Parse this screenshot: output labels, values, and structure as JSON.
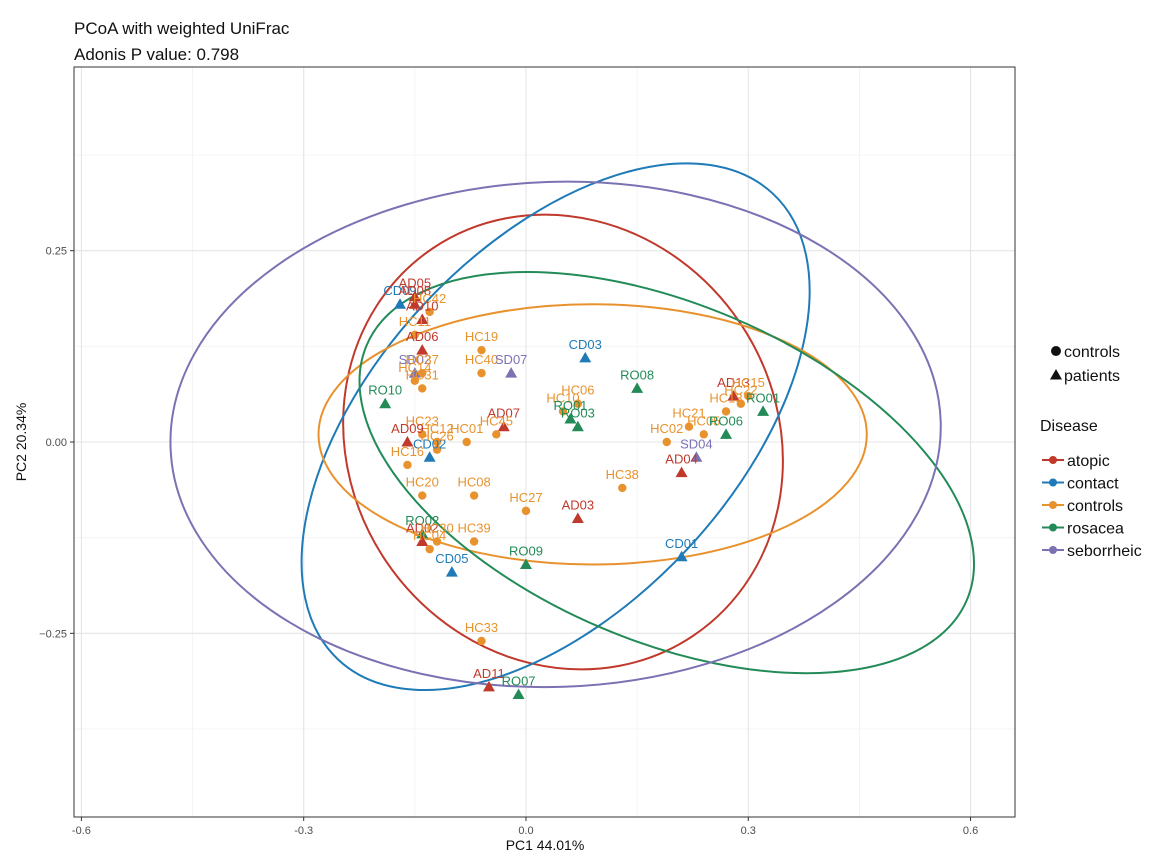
{
  "chart_data": {
    "type": "scatter",
    "title": "PCoA with weighted UniFrac",
    "subtitle": "Adonis P value: 0.798",
    "xlabel": "PC1 44.01%",
    "ylabel": "PC2 20.34%",
    "xlim": [
      -0.61,
      0.66
    ],
    "ylim": [
      -0.49,
      0.49
    ],
    "x_ticks": [
      -0.6,
      -0.3,
      0.0,
      0.3,
      0.6
    ],
    "x_tick_labels": [
      "-0.6",
      "-0.3",
      "0.0",
      "0.3",
      "0.6"
    ],
    "y_ticks": [
      -0.25,
      0.0,
      0.25
    ],
    "y_tick_labels": [
      "−0.25",
      "0.00",
      "0.25"
    ],
    "grid": true,
    "legend_position": "right",
    "shape_legend": {
      "items": [
        {
          "label": "controls",
          "shape": "circle"
        },
        {
          "label": "patients",
          "shape": "triangle"
        }
      ]
    },
    "color_legend": {
      "title": "Disease",
      "items": [
        {
          "label": "atopic",
          "color": "#c0392b"
        },
        {
          "label": "contact",
          "color": "#1f7ab8"
        },
        {
          "label": "controls",
          "color": "#e8922e"
        },
        {
          "label": "rosacea",
          "color": "#238b57"
        },
        {
          "label": "seborrheic",
          "color": "#7b72b3"
        }
      ]
    },
    "ellipses": [
      {
        "group": "atopic",
        "cx": 0.05,
        "cy": 0.0,
        "rx": 0.288,
        "ry": 0.305,
        "angle": -34
      },
      {
        "group": "contact",
        "cx": 0.04,
        "cy": 0.02,
        "rx": 0.43,
        "ry": 0.235,
        "angle": -47
      },
      {
        "group": "controls",
        "cx": 0.09,
        "cy": 0.01,
        "rx": 0.37,
        "ry": 0.17,
        "angle": 0
      },
      {
        "group": "rosacea",
        "cx": 0.19,
        "cy": -0.04,
        "rx": 0.44,
        "ry": 0.22,
        "angle": 23
      },
      {
        "group": "seborrheic",
        "cx": 0.04,
        "cy": 0.01,
        "rx": 0.52,
        "ry": 0.33,
        "angle": -2
      }
    ],
    "points": [
      {
        "label": "CD09",
        "x": -0.17,
        "y": 0.18,
        "group": "contact",
        "shape": "triangle"
      },
      {
        "label": "AD08",
        "x": -0.15,
        "y": 0.18,
        "group": "atopic",
        "shape": "triangle"
      },
      {
        "label": "AD05",
        "x": -0.15,
        "y": 0.19,
        "group": "atopic",
        "shape": "triangle"
      },
      {
        "label": "HC42",
        "x": -0.13,
        "y": 0.17,
        "group": "controls",
        "shape": "circle"
      },
      {
        "label": "AD10",
        "x": -0.14,
        "y": 0.16,
        "group": "atopic",
        "shape": "triangle"
      },
      {
        "label": "HC11",
        "x": -0.15,
        "y": 0.14,
        "group": "controls",
        "shape": "circle"
      },
      {
        "label": "AD06",
        "x": -0.14,
        "y": 0.12,
        "group": "atopic",
        "shape": "triangle"
      },
      {
        "label": "HC19",
        "x": -0.06,
        "y": 0.12,
        "group": "controls",
        "shape": "circle"
      },
      {
        "label": "CD03",
        "x": 0.08,
        "y": 0.11,
        "group": "contact",
        "shape": "triangle"
      },
      {
        "label": "HC40",
        "x": -0.06,
        "y": 0.09,
        "group": "controls",
        "shape": "circle"
      },
      {
        "label": "SD07",
        "x": -0.02,
        "y": 0.09,
        "group": "seborrheic",
        "shape": "triangle"
      },
      {
        "label": "SD02",
        "x": -0.15,
        "y": 0.09,
        "group": "seborrheic",
        "shape": "triangle"
      },
      {
        "label": "HC37",
        "x": -0.14,
        "y": 0.09,
        "group": "controls",
        "shape": "circle"
      },
      {
        "label": "HC14",
        "x": -0.15,
        "y": 0.08,
        "group": "controls",
        "shape": "circle"
      },
      {
        "label": "HC31",
        "x": -0.14,
        "y": 0.07,
        "group": "controls",
        "shape": "circle"
      },
      {
        "label": "RO10",
        "x": -0.19,
        "y": 0.05,
        "group": "rosacea",
        "shape": "triangle"
      },
      {
        "label": "RO08",
        "x": 0.15,
        "y": 0.07,
        "group": "rosacea",
        "shape": "triangle"
      },
      {
        "label": "HC06",
        "x": 0.07,
        "y": 0.05,
        "group": "controls",
        "shape": "circle"
      },
      {
        "label": "HC10",
        "x": 0.05,
        "y": 0.04,
        "group": "controls",
        "shape": "circle"
      },
      {
        "label": "RO01",
        "x": 0.06,
        "y": 0.03,
        "group": "rosacea",
        "shape": "triangle"
      },
      {
        "label": "RO03",
        "x": 0.07,
        "y": 0.02,
        "group": "rosacea",
        "shape": "triangle"
      },
      {
        "label": "AD07",
        "x": -0.03,
        "y": 0.02,
        "group": "atopic",
        "shape": "triangle"
      },
      {
        "label": "HC45",
        "x": -0.04,
        "y": 0.01,
        "group": "controls",
        "shape": "circle"
      },
      {
        "label": "HC01",
        "x": -0.08,
        "y": 0.0,
        "group": "controls",
        "shape": "circle"
      },
      {
        "label": "HC23",
        "x": -0.14,
        "y": 0.01,
        "group": "controls",
        "shape": "circle"
      },
      {
        "label": "HC12",
        "x": -0.12,
        "y": 0.0,
        "group": "controls",
        "shape": "circle"
      },
      {
        "label": "AD09",
        "x": -0.16,
        "y": 0.0,
        "group": "atopic",
        "shape": "triangle"
      },
      {
        "label": "CD02",
        "x": -0.13,
        "y": -0.02,
        "group": "contact",
        "shape": "triangle"
      },
      {
        "label": "HC26",
        "x": -0.12,
        "y": -0.01,
        "group": "controls",
        "shape": "circle"
      },
      {
        "label": "HC16",
        "x": -0.16,
        "y": -0.03,
        "group": "controls",
        "shape": "circle"
      },
      {
        "label": "HC20",
        "x": -0.14,
        "y": -0.07,
        "group": "controls",
        "shape": "circle"
      },
      {
        "label": "HC08",
        "x": -0.07,
        "y": -0.07,
        "group": "controls",
        "shape": "circle"
      },
      {
        "label": "HC27",
        "x": 0.0,
        "y": -0.09,
        "group": "controls",
        "shape": "circle"
      },
      {
        "label": "AD03",
        "x": 0.07,
        "y": -0.1,
        "group": "atopic",
        "shape": "triangle"
      },
      {
        "label": "HC38",
        "x": 0.13,
        "y": -0.06,
        "group": "controls",
        "shape": "circle"
      },
      {
        "label": "AD04",
        "x": 0.21,
        "y": -0.04,
        "group": "atopic",
        "shape": "triangle"
      },
      {
        "label": "HC02",
        "x": 0.19,
        "y": 0.0,
        "group": "controls",
        "shape": "circle"
      },
      {
        "label": "HC21",
        "x": 0.22,
        "y": 0.02,
        "group": "controls",
        "shape": "circle"
      },
      {
        "label": "SD04",
        "x": 0.23,
        "y": -0.02,
        "group": "seborrheic",
        "shape": "triangle"
      },
      {
        "label": "HC05",
        "x": 0.24,
        "y": 0.01,
        "group": "controls",
        "shape": "circle"
      },
      {
        "label": "RO06",
        "x": 0.27,
        "y": 0.01,
        "group": "rosacea",
        "shape": "triangle"
      },
      {
        "label": "HC13",
        "x": 0.27,
        "y": 0.04,
        "group": "controls",
        "shape": "circle"
      },
      {
        "label": "AD13",
        "x": 0.28,
        "y": 0.06,
        "group": "atopic",
        "shape": "triangle"
      },
      {
        "label": "HC22",
        "x": 0.29,
        "y": 0.05,
        "group": "controls",
        "shape": "circle"
      },
      {
        "label": "HC15",
        "x": 0.3,
        "y": 0.06,
        "group": "controls",
        "shape": "circle"
      },
      {
        "label": "RO01",
        "x": 0.32,
        "y": 0.04,
        "group": "rosacea",
        "shape": "triangle"
      },
      {
        "label": "RO02",
        "x": -0.14,
        "y": -0.12,
        "group": "rosacea",
        "shape": "triangle"
      },
      {
        "label": "AD02",
        "x": -0.14,
        "y": -0.13,
        "group": "atopic",
        "shape": "triangle"
      },
      {
        "label": "HC39",
        "x": -0.07,
        "y": -0.13,
        "group": "controls",
        "shape": "circle"
      },
      {
        "label": "HC30",
        "x": -0.12,
        "y": -0.13,
        "group": "controls",
        "shape": "circle"
      },
      {
        "label": "HC04",
        "x": -0.13,
        "y": -0.14,
        "group": "controls",
        "shape": "circle"
      },
      {
        "label": "CD05",
        "x": -0.1,
        "y": -0.17,
        "group": "contact",
        "shape": "triangle"
      },
      {
        "label": "RO09",
        "x": 0.0,
        "y": -0.16,
        "group": "rosacea",
        "shape": "triangle"
      },
      {
        "label": "CD01",
        "x": 0.21,
        "y": -0.15,
        "group": "contact",
        "shape": "triangle"
      },
      {
        "label": "HC33",
        "x": -0.06,
        "y": -0.26,
        "group": "controls",
        "shape": "circle"
      },
      {
        "label": "AD11",
        "x": -0.05,
        "y": -0.32,
        "group": "atopic",
        "shape": "triangle"
      },
      {
        "label": "RO07",
        "x": -0.01,
        "y": -0.33,
        "group": "rosacea",
        "shape": "triangle"
      }
    ]
  }
}
